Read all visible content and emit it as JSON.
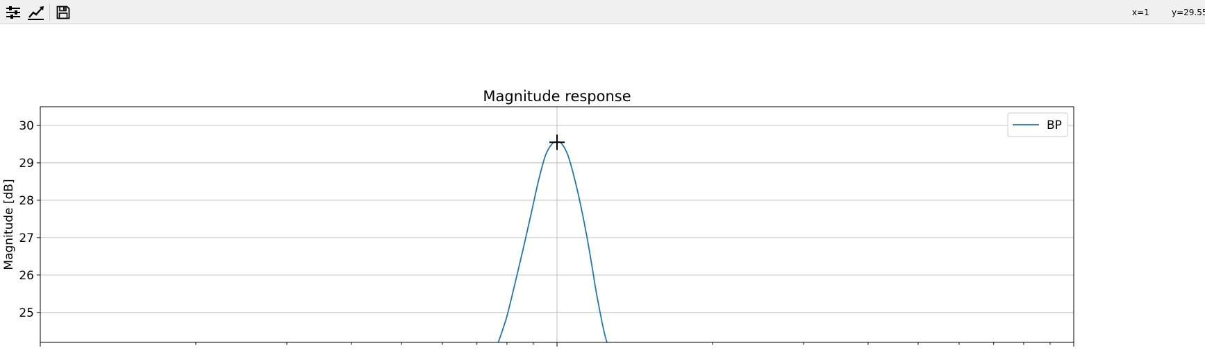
{
  "toolbar": {
    "buttons": [
      {
        "name": "configure-subplots-button",
        "icon": "sliders-icon"
      },
      {
        "name": "edit-axis-button",
        "icon": "line-chart-icon"
      },
      {
        "name": "save-figure-button",
        "icon": "floppy-disk-icon"
      }
    ],
    "coord_x": "x=1",
    "coord_y": "y=29.55"
  },
  "chart_data": {
    "type": "line",
    "title": "Magnitude response",
    "ylabel": "Magnitude [dB]",
    "xlabel": "",
    "x_scale": "log",
    "xlim": [
      0.1,
      10
    ],
    "ylim": [
      24.2,
      30.5
    ],
    "yticks": [
      25,
      26,
      27,
      28,
      29,
      30
    ],
    "grid": true,
    "legend": {
      "placement": "top-right"
    },
    "series": [
      {
        "name": "BP",
        "color": "#1f77b4",
        "x": [
          0.77,
          0.8,
          0.83,
          0.86,
          0.89,
          0.92,
          0.95,
          0.98,
          1.0,
          1.02,
          1.05,
          1.08,
          1.11,
          1.14,
          1.17,
          1.2,
          1.25,
          1.3
        ],
        "y": [
          24.2,
          24.9,
          25.8,
          26.7,
          27.6,
          28.5,
          29.2,
          29.52,
          29.55,
          29.52,
          29.2,
          28.6,
          27.9,
          27.1,
          26.2,
          25.3,
          24.2,
          24.2
        ]
      }
    ]
  }
}
